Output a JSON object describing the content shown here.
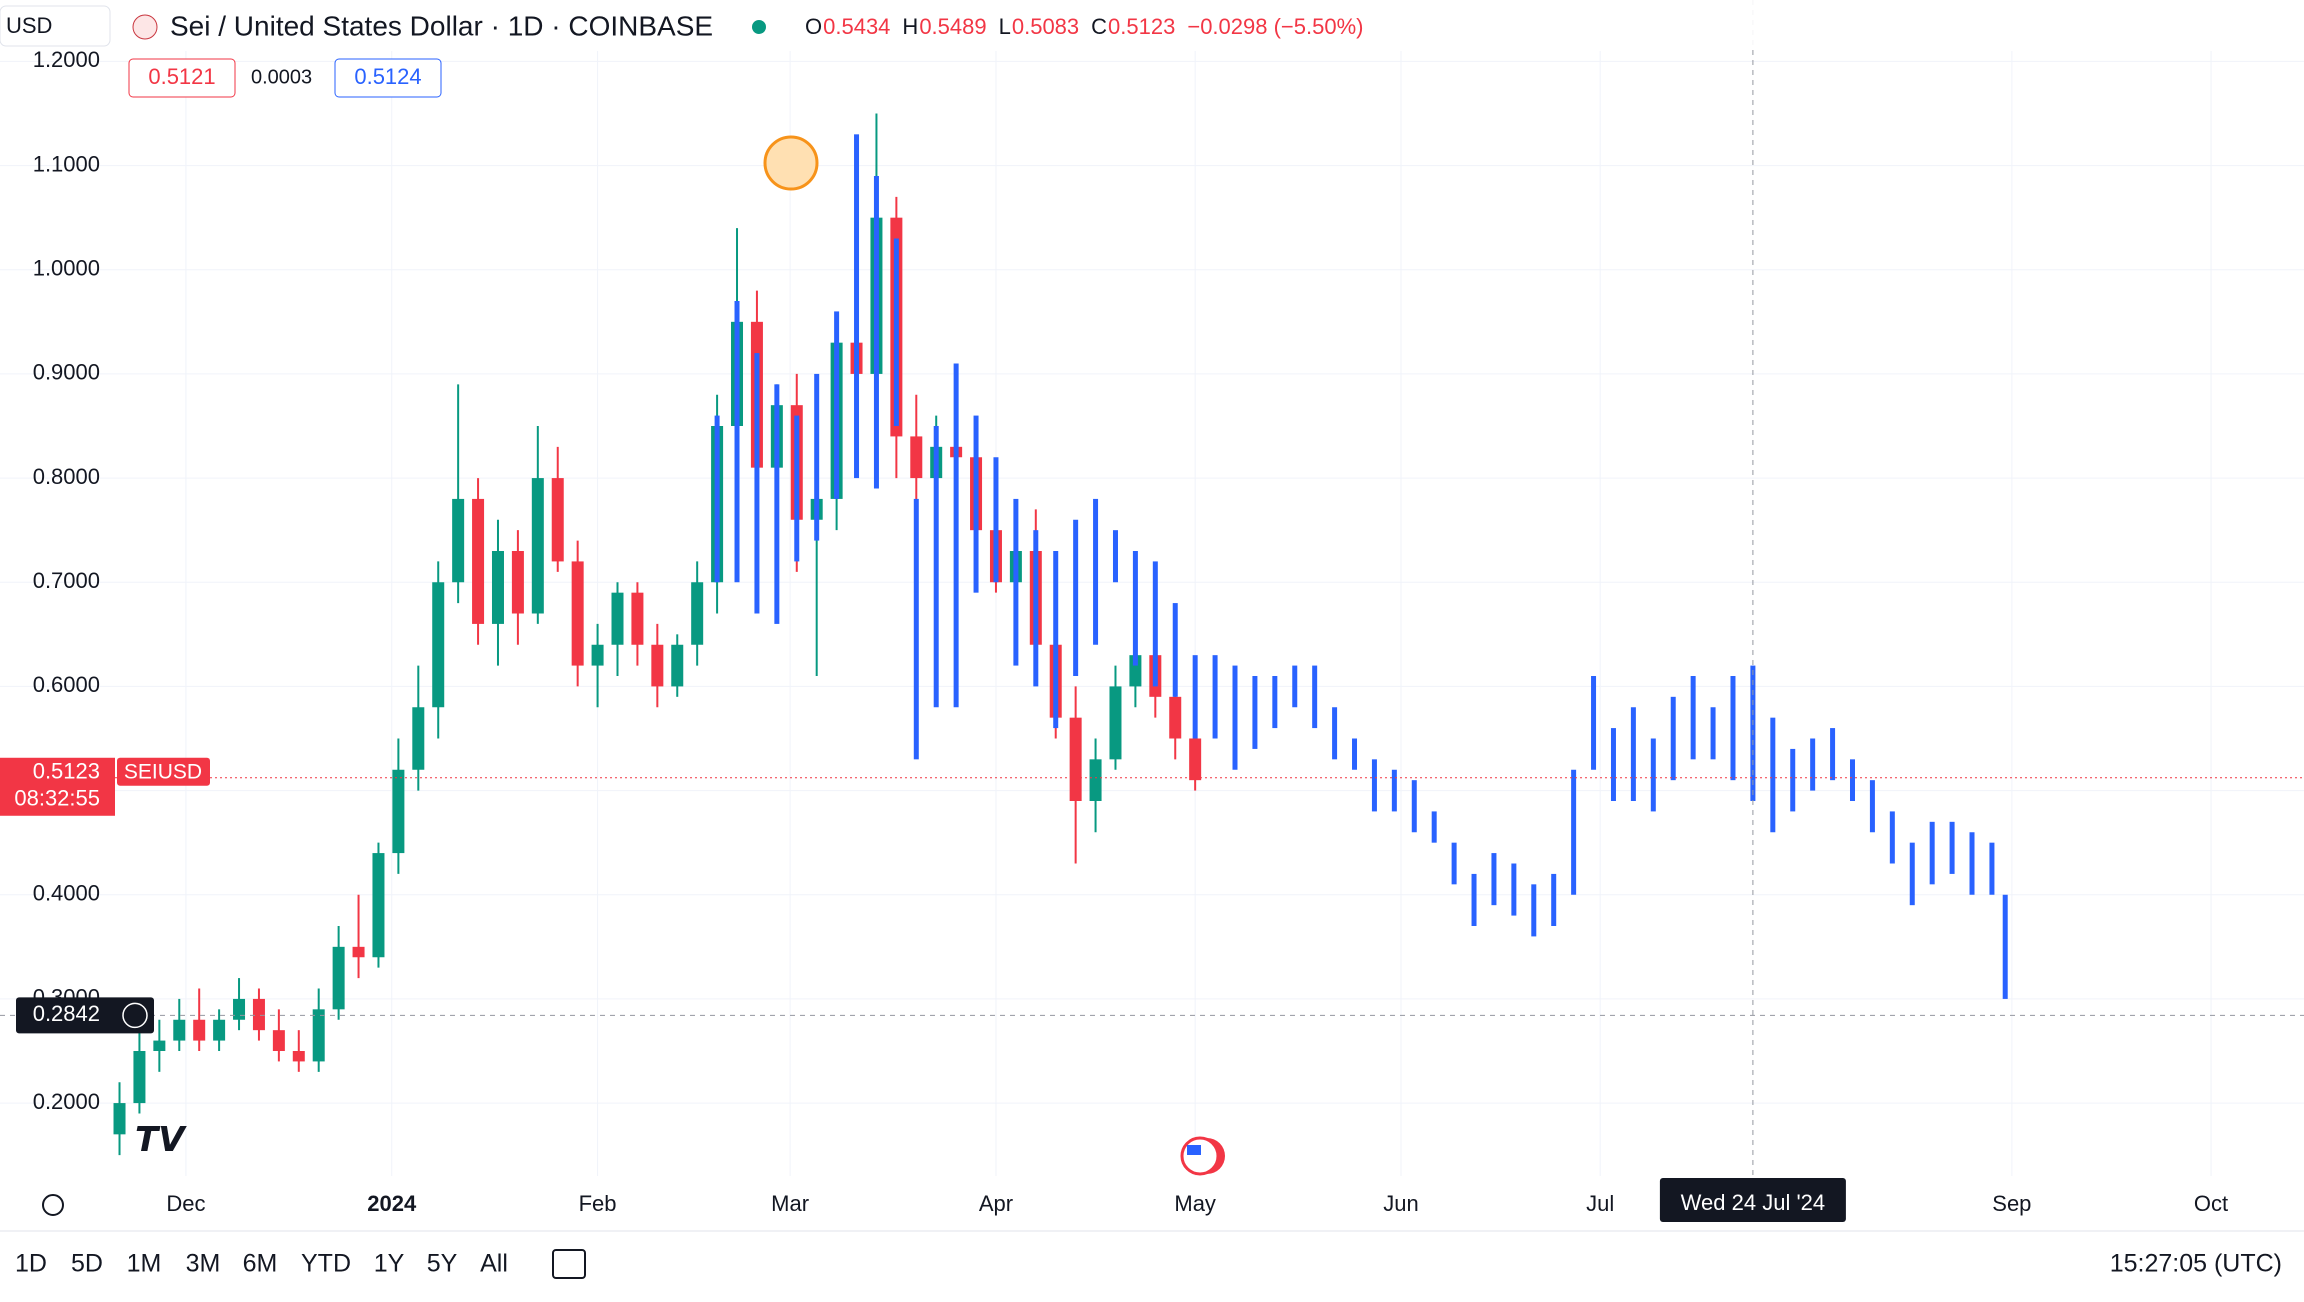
{
  "header": {
    "currency": "USD",
    "symbol": "Sei / United States Dollar · 1D · COINBASE",
    "ohlc": [
      {
        "key": "O",
        "value": "0.5434"
      },
      {
        "key": "H",
        "value": "0.5489"
      },
      {
        "key": "L",
        "value": "0.5083"
      },
      {
        "key": "C",
        "value": "0.5123"
      }
    ],
    "change": "−0.0298 (−5.50%)",
    "bid": "0.5121",
    "spread": "0.0003",
    "ask": "0.5124"
  },
  "toolbar": {
    "ranges": [
      "1D",
      "5D",
      "1M",
      "3M",
      "6M",
      "YTD",
      "1Y",
      "5Y",
      "All"
    ],
    "clock": "15:27:05 (UTC)"
  },
  "chart_data": {
    "type": "candlestick",
    "grid": true,
    "up_color": "#089981",
    "down_color": "#f23645",
    "xlim": [
      "2023-11-03",
      "2024-10-15"
    ],
    "ylim": [
      0.13,
      1.21
    ],
    "yticks": [
      {
        "value": 0.2,
        "label": "0.2000"
      },
      {
        "value": 0.3,
        "label": "0.3000"
      },
      {
        "value": 0.4,
        "label": "0.4000"
      },
      {
        "value": 0.5,
        "label": "0.5000"
      },
      {
        "value": 0.6,
        "label": "0.6000"
      },
      {
        "value": 0.7,
        "label": "0.7000"
      },
      {
        "value": 0.8,
        "label": "0.8000"
      },
      {
        "value": 0.9,
        "label": "0.9000"
      },
      {
        "value": 1.0,
        "label": "1.0000"
      },
      {
        "value": 1.1,
        "label": "1.1000"
      },
      {
        "value": 1.2,
        "label": "1.2000"
      }
    ],
    "xticks": [
      {
        "value": "2023-12-01",
        "label": "Dec"
      },
      {
        "value": "2024-01-01",
        "label": "2024"
      },
      {
        "value": "2024-02-01",
        "label": "Feb"
      },
      {
        "value": "2024-03-01",
        "label": "Mar"
      },
      {
        "value": "2024-04-01",
        "label": "Apr"
      },
      {
        "value": "2024-05-01",
        "label": "May"
      },
      {
        "value": "2024-06-01",
        "label": "Jun"
      },
      {
        "value": "2024-07-01",
        "label": "Jul"
      },
      {
        "value": "2024-09-01",
        "label": "Sep"
      },
      {
        "value": "2024-10-01",
        "label": "Oct"
      }
    ],
    "last_price": 0.5123,
    "countdown": "08:32:55",
    "crosshair": {
      "price": 0.2842,
      "date": {
        "value": "2024-07-24",
        "label": "Wed 24 Jul '24"
      }
    },
    "series": [
      {
        "name": "SEIUSD",
        "type": "candlestick",
        "x": [
          "2023-11-21",
          "2023-11-24",
          "2023-11-27",
          "2023-11-30",
          "2023-12-03",
          "2023-12-06",
          "2023-12-09",
          "2023-12-12",
          "2023-12-15",
          "2023-12-18",
          "2023-12-21",
          "2023-12-24",
          "2023-12-27",
          "2023-12-30",
          "2024-01-02",
          "2024-01-05",
          "2024-01-08",
          "2024-01-11",
          "2024-01-14",
          "2024-01-17",
          "2024-01-20",
          "2024-01-23",
          "2024-01-26",
          "2024-01-29",
          "2024-02-01",
          "2024-02-04",
          "2024-02-07",
          "2024-02-10",
          "2024-02-13",
          "2024-02-16",
          "2024-02-19",
          "2024-02-22",
          "2024-02-25",
          "2024-02-28",
          "2024-03-02",
          "2024-03-05",
          "2024-03-08",
          "2024-03-11",
          "2024-03-14",
          "2024-03-17",
          "2024-03-20",
          "2024-03-23",
          "2024-03-26",
          "2024-03-29",
          "2024-04-01",
          "2024-04-04",
          "2024-04-07",
          "2024-04-10",
          "2024-04-13",
          "2024-04-16",
          "2024-04-19",
          "2024-04-22",
          "2024-04-25",
          "2024-04-28",
          "2024-05-01"
        ],
        "open": [
          0.17,
          0.2,
          0.25,
          0.26,
          0.28,
          0.26,
          0.28,
          0.3,
          0.27,
          0.25,
          0.24,
          0.29,
          0.35,
          0.34,
          0.44,
          0.52,
          0.58,
          0.7,
          0.78,
          0.66,
          0.73,
          0.67,
          0.8,
          0.72,
          0.62,
          0.64,
          0.69,
          0.64,
          0.6,
          0.64,
          0.7,
          0.85,
          0.95,
          0.81,
          0.87,
          0.76,
          0.78,
          0.93,
          0.9,
          1.05,
          0.84,
          0.8,
          0.83,
          0.82,
          0.75,
          0.7,
          0.73,
          0.64,
          0.57,
          0.49,
          0.53,
          0.6,
          0.63,
          0.59,
          0.55
        ],
        "high": [
          0.22,
          0.27,
          0.28,
          0.3,
          0.31,
          0.29,
          0.32,
          0.31,
          0.29,
          0.27,
          0.31,
          0.37,
          0.4,
          0.45,
          0.55,
          0.62,
          0.72,
          0.89,
          0.8,
          0.76,
          0.75,
          0.85,
          0.83,
          0.74,
          0.66,
          0.7,
          0.7,
          0.66,
          0.65,
          0.72,
          0.88,
          1.04,
          0.98,
          0.89,
          0.9,
          0.82,
          0.95,
          1.1,
          1.15,
          1.07,
          0.88,
          0.86,
          0.91,
          0.84,
          0.79,
          0.76,
          0.77,
          0.67,
          0.6,
          0.55,
          0.62,
          0.66,
          0.65,
          0.63,
          0.56
        ],
        "low": [
          0.15,
          0.19,
          0.23,
          0.25,
          0.25,
          0.25,
          0.27,
          0.26,
          0.24,
          0.23,
          0.23,
          0.28,
          0.32,
          0.33,
          0.42,
          0.5,
          0.55,
          0.68,
          0.64,
          0.62,
          0.64,
          0.66,
          0.71,
          0.6,
          0.58,
          0.61,
          0.62,
          0.58,
          0.59,
          0.62,
          0.67,
          0.8,
          0.78,
          0.75,
          0.71,
          0.61,
          0.75,
          0.9,
          0.85,
          0.8,
          0.75,
          0.77,
          0.79,
          0.72,
          0.69,
          0.67,
          0.62,
          0.55,
          0.43,
          0.46,
          0.52,
          0.58,
          0.57,
          0.53,
          0.5
        ],
        "close": [
          0.2,
          0.25,
          0.26,
          0.28,
          0.26,
          0.28,
          0.3,
          0.27,
          0.25,
          0.24,
          0.29,
          0.35,
          0.34,
          0.44,
          0.52,
          0.58,
          0.7,
          0.78,
          0.66,
          0.73,
          0.67,
          0.8,
          0.72,
          0.62,
          0.64,
          0.69,
          0.64,
          0.6,
          0.64,
          0.7,
          0.85,
          0.95,
          0.81,
          0.87,
          0.76,
          0.78,
          0.93,
          0.9,
          1.05,
          0.84,
          0.8,
          0.83,
          0.82,
          0.75,
          0.7,
          0.73,
          0.64,
          0.57,
          0.49,
          0.53,
          0.6,
          0.63,
          0.59,
          0.55,
          0.51
        ]
      },
      {
        "type": "range_bar",
        "color": "#2962ff",
        "x": [
          "2024-02-19",
          "2024-02-22",
          "2024-02-25",
          "2024-02-28",
          "2024-03-02",
          "2024-03-05",
          "2024-03-08",
          "2024-03-11",
          "2024-03-14",
          "2024-03-17",
          "2024-03-20",
          "2024-03-23",
          "2024-03-26",
          "2024-03-29",
          "2024-04-01",
          "2024-04-04",
          "2024-04-07",
          "2024-04-10",
          "2024-04-13",
          "2024-04-16",
          "2024-04-19",
          "2024-04-22",
          "2024-04-25",
          "2024-04-28",
          "2024-05-01",
          "2024-05-04",
          "2024-05-07",
          "2024-05-10",
          "2024-05-13",
          "2024-05-16",
          "2024-05-19",
          "2024-05-22",
          "2024-05-25",
          "2024-05-28",
          "2024-05-31",
          "2024-06-03",
          "2024-06-06",
          "2024-06-09",
          "2024-06-12",
          "2024-06-15",
          "2024-06-18",
          "2024-06-21",
          "2024-06-24",
          "2024-06-27",
          "2024-06-30",
          "2024-07-03",
          "2024-07-06",
          "2024-07-09",
          "2024-07-12",
          "2024-07-15",
          "2024-07-18",
          "2024-07-21",
          "2024-07-24",
          "2024-07-27",
          "2024-07-30",
          "2024-08-02",
          "2024-08-05",
          "2024-08-08",
          "2024-08-11",
          "2024-08-14",
          "2024-08-17",
          "2024-08-20",
          "2024-08-23",
          "2024-08-26",
          "2024-08-29",
          "2024-08-31"
        ],
        "high": [
          0.86,
          0.97,
          0.92,
          0.89,
          0.86,
          0.9,
          0.96,
          1.13,
          1.09,
          1.03,
          0.78,
          0.85,
          0.91,
          0.86,
          0.82,
          0.78,
          0.75,
          0.73,
          0.76,
          0.78,
          0.75,
          0.73,
          0.72,
          0.68,
          0.63,
          0.63,
          0.62,
          0.61,
          0.61,
          0.62,
          0.62,
          0.58,
          0.55,
          0.53,
          0.52,
          0.51,
          0.48,
          0.45,
          0.42,
          0.44,
          0.43,
          0.41,
          0.42,
          0.52,
          0.61,
          0.56,
          0.58,
          0.55,
          0.59,
          0.61,
          0.58,
          0.61,
          0.62,
          0.57,
          0.54,
          0.55,
          0.56,
          0.53,
          0.51,
          0.48,
          0.45,
          0.47,
          0.47,
          0.46,
          0.45,
          0.4
        ],
        "low": [
          0.7,
          0.7,
          0.67,
          0.66,
          0.72,
          0.74,
          0.78,
          0.8,
          0.79,
          0.85,
          0.53,
          0.58,
          0.58,
          0.69,
          0.7,
          0.62,
          0.6,
          0.56,
          0.61,
          0.64,
          0.7,
          0.62,
          0.6,
          0.59,
          0.55,
          0.55,
          0.52,
          0.54,
          0.56,
          0.58,
          0.56,
          0.53,
          0.52,
          0.48,
          0.48,
          0.46,
          0.45,
          0.41,
          0.37,
          0.39,
          0.38,
          0.36,
          0.37,
          0.4,
          0.52,
          0.49,
          0.49,
          0.48,
          0.51,
          0.53,
          0.53,
          0.51,
          0.49,
          0.46,
          0.48,
          0.5,
          0.51,
          0.49,
          0.46,
          0.43,
          0.39,
          0.41,
          0.42,
          0.4,
          0.4,
          0.3
        ]
      }
    ]
  }
}
